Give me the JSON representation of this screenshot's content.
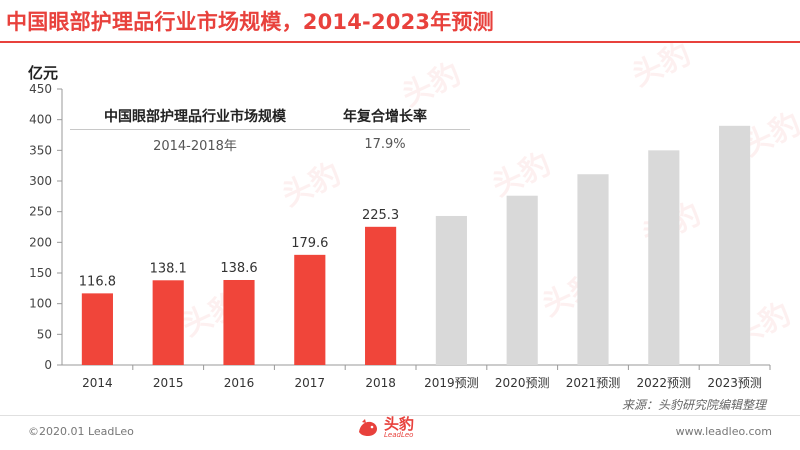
{
  "header": {
    "title": "中国眼部护理品行业市场规模，2014-2023年预测"
  },
  "summary_table": {
    "col1_header": "中国眼部护理品行业市场规模",
    "col2_header": "年复合增长率",
    "col1_value": "2014-2018年",
    "col2_value": "17.9%"
  },
  "chart_data": {
    "type": "bar",
    "unit_label": "亿元",
    "categories": [
      "2014",
      "2015",
      "2016",
      "2017",
      "2018",
      "2019预测",
      "2020预测",
      "2021预测",
      "2022预测",
      "2023预测"
    ],
    "values": [
      116.8,
      138.1,
      138.6,
      179.6,
      225.3,
      243,
      276,
      311,
      350,
      390
    ],
    "value_labels": [
      "116.8",
      "138.1",
      "138.6",
      "179.6",
      "225.3",
      "",
      "",
      "",
      "",
      ""
    ],
    "bar_colors": [
      "#f0453a",
      "#f0453a",
      "#f0453a",
      "#f0453a",
      "#f0453a",
      "#d9d9d9",
      "#d9d9d9",
      "#d9d9d9",
      "#d9d9d9",
      "#d9d9d9"
    ],
    "ylim": [
      0,
      450
    ],
    "yticks": [
      0,
      50,
      100,
      150,
      200,
      250,
      300,
      350,
      400,
      450
    ],
    "grid": false,
    "legend": "none"
  },
  "source": "来源：头豹研究院编辑整理",
  "footer": {
    "copyright": "©2020.01 LeadLeo",
    "website": "www.leadleo.com",
    "logo_cn": "头豹",
    "logo_en": "LeadLeo"
  },
  "watermark": {
    "text": "头豹"
  },
  "colors": {
    "accent": "#e8413c",
    "actual_bar": "#f0453a",
    "forecast_bar": "#d9d9d9"
  }
}
